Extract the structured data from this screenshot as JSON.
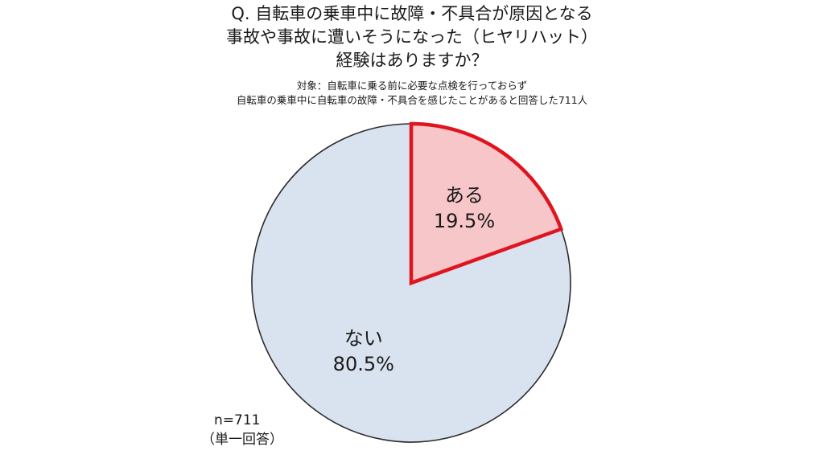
{
  "title": {
    "line1": "Q. 自転車の乗車中に故障・不具合が原因となる",
    "line2": "事故や事故に遭いそうになった（ヒヤリハット）",
    "line3": "経験はありますか？"
  },
  "subject": {
    "line1": "対象：自転車に乗る前に必要な点検を行っておらず",
    "line2": "自転車の乗車中に自転車の故障・不具合を感じたことがあると回答した711人"
  },
  "notes": {
    "n": "n=711",
    "answer_type": "（単一回答）"
  },
  "colors": {
    "aru_fill": "#f6c6c8",
    "aru_stroke": "#e0141e",
    "nai_fill": "#d9e2ef",
    "outline": "#2b2b2b",
    "text": "#1a1a1a"
  },
  "chart_data": {
    "type": "pie",
    "start": "12 o'clock, clockwise",
    "slices": [
      {
        "label": "ある",
        "value": 19.5,
        "display": "19.5%",
        "highlight": true
      },
      {
        "label": "ない",
        "value": 80.5,
        "display": "80.5%",
        "highlight": false
      }
    ]
  }
}
